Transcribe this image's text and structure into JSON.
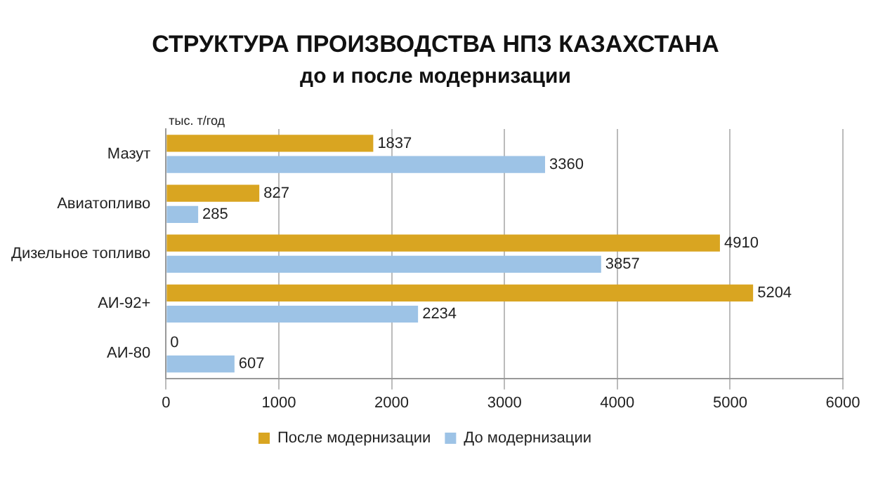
{
  "chart_data": {
    "type": "bar",
    "orientation": "horizontal",
    "title": "СТРУКТУРА ПРОИЗВОДСТВА НПЗ КАЗАХСТАНА",
    "subtitle": "до и после модернизации",
    "categories": [
      "Мазут",
      "Авиатопливо",
      "Дизельное топливо",
      "АИ-92+",
      "АИ-80"
    ],
    "series": [
      {
        "name": "После модернизации",
        "color": "#d9a521",
        "values": [
          1837,
          827,
          4910,
          5204,
          0
        ]
      },
      {
        "name": "До модернизации",
        "color": "#9dc3e6",
        "values": [
          3360,
          285,
          3857,
          2234,
          607
        ]
      }
    ],
    "xlim": [
      0,
      6000
    ],
    "xticks": [
      0,
      1000,
      2000,
      3000,
      4000,
      5000,
      6000
    ],
    "grid": "x",
    "legend": "bottom",
    "data_labels": true,
    "annotations": [
      "тыс. т/год"
    ]
  }
}
